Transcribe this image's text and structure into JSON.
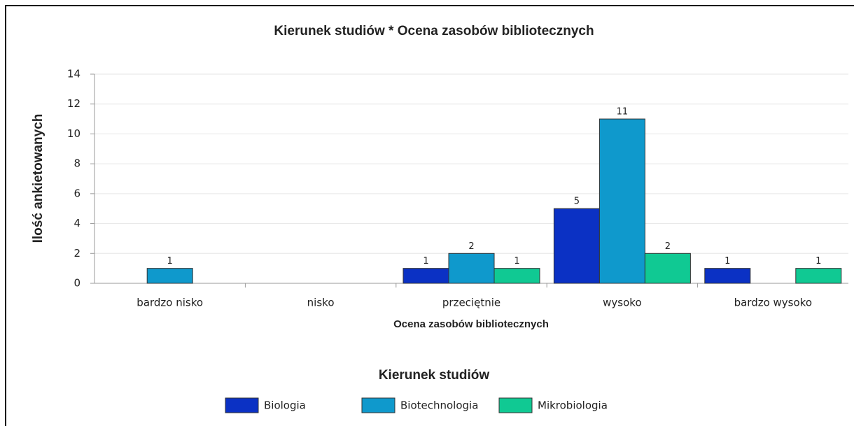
{
  "chart_data": {
    "type": "bar",
    "title": "Kierunek studiów * Ocena zasobów bibliotecznych",
    "x_label": "Ocena zasobów bibliotecznych",
    "y_label": "Ilość ankietowanych",
    "legend_title": "Kierunek studiów",
    "categories": [
      "bardzo nisko",
      "nisko",
      "przeciętnie",
      "wysoko",
      "bardzo wysoko"
    ],
    "series": [
      {
        "name": "Biologia",
        "color": "#0b31c4",
        "values": [
          null,
          null,
          1,
          5,
          1
        ]
      },
      {
        "name": "Biotechnologia",
        "color": "#0f99cc",
        "values": [
          1,
          null,
          2,
          11,
          null
        ]
      },
      {
        "name": "Mikrobiologia",
        "color": "#10c993",
        "values": [
          null,
          null,
          1,
          2,
          1
        ]
      }
    ],
    "ylim": [
      0,
      14
    ],
    "yticks": [
      0,
      2,
      4,
      6,
      8,
      10,
      12,
      14
    ],
    "grid": true,
    "legend": "bottom"
  }
}
